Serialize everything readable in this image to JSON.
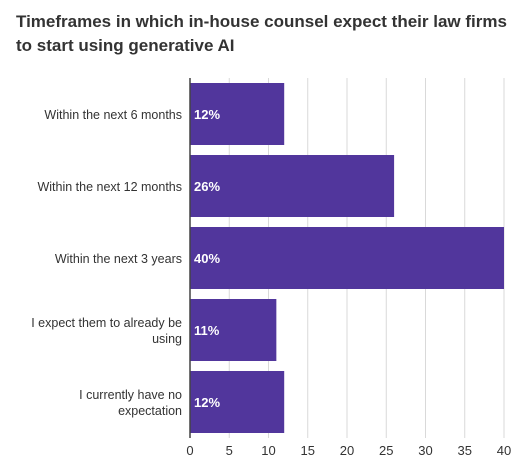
{
  "chart_data": {
    "type": "bar",
    "orientation": "horizontal",
    "title_lines": [
      "Timeframes in which in-house counsel expect their law firms",
      "to start using generative AI"
    ],
    "categories": [
      [
        "Within the next 6 months"
      ],
      [
        "Within the next 12 months"
      ],
      [
        "Within the next 3 years"
      ],
      [
        "I expect them to already be",
        "using"
      ],
      [
        "I currently have no",
        "expectation"
      ]
    ],
    "values": [
      12,
      26,
      40,
      11,
      12
    ],
    "value_labels": [
      "12%",
      "26%",
      "40%",
      "11%",
      "12%"
    ],
    "xlim": [
      0,
      40
    ],
    "xticks": [
      "0",
      "5",
      "10",
      "15",
      "20",
      "25",
      "30",
      "35",
      "40"
    ],
    "grid": true,
    "colors": {
      "bar": "#51369c",
      "grid": "#d9d9d9",
      "axis": "#444444",
      "text": "#333333",
      "bar_text": "#ffffff"
    }
  }
}
